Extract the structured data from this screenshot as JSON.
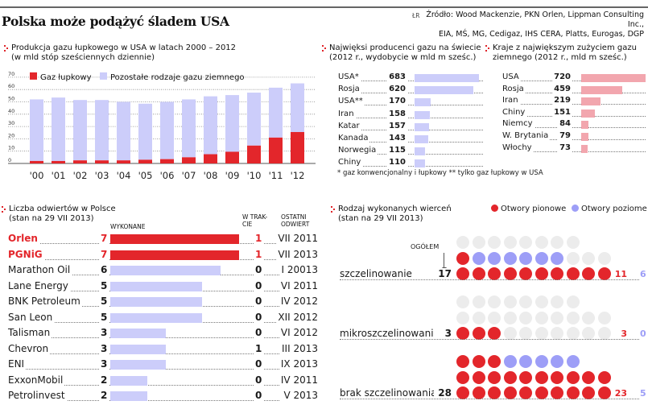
{
  "header": {
    "title": "Polska może podążyć śladem USA",
    "author": "ŁR",
    "source_line1": "Źródło: Wood Mackenzie, PKN Orlen, Lippman Consulting Inc.,",
    "source_line2": "EIA, MŚ, MG, Cedigaz, IHS CERA, Platts, Eurogas, DGP"
  },
  "colors": {
    "red": "#e3262b",
    "lavender": "#cccdfa",
    "pink": "#f2a6ae",
    "purple_dot": "#9d9ef7",
    "grey_dot": "#ececec"
  },
  "chart_data": [
    {
      "id": "us-shale-production",
      "type": "bar",
      "stacked": true,
      "title_line1": "Produkcja gazu łupkowego w USA w latach 2000  – 2012",
      "title_line2": "(w mld stóp sześciennych dziennie)",
      "categories": [
        "'00",
        "'01",
        "'02",
        "'03",
        "'04",
        "'05",
        "'06",
        "'07",
        "'08",
        "'09",
        "'10",
        "'11",
        "'12"
      ],
      "series": [
        {
          "name": "Gaz łupkowy",
          "color": "#e3262b",
          "values": [
            2,
            2,
            2.5,
            2.5,
            2.5,
            3,
            3.5,
            5,
            7.5,
            9.5,
            14.5,
            21,
            25.5
          ]
        },
        {
          "name": "Pozostałe rodzaje gazu ziemnego",
          "color": "#cccdfa",
          "values": [
            50,
            51.5,
            49,
            49,
            47.5,
            45.5,
            46.5,
            47,
            47,
            46,
            43,
            40.5,
            39.5
          ]
        }
      ],
      "yticks": [
        "0",
        "10",
        "20",
        "30",
        "40",
        "50",
        "60",
        "70"
      ],
      "ylim": [
        0,
        70
      ],
      "grid": true,
      "legend": "top-left"
    },
    {
      "id": "largest-producers",
      "type": "bar",
      "orientation": "horizontal",
      "title_line1": "Najwięksi producenci gazu na świecie",
      "title_line2": "(2012 r., wydobycie w mld m sześc.)",
      "categories": [
        "USA*",
        "Rosja",
        "USA**",
        "Iran",
        "Katar",
        "Kanada",
        "Norwegia",
        "Chiny"
      ],
      "values": [
        683,
        620,
        170,
        158,
        157,
        143,
        115,
        110
      ],
      "labels": [
        "683",
        "620",
        "170",
        "158",
        "157",
        "143",
        "115",
        "110"
      ],
      "color": "#cccdfa",
      "footnote": "* gaz konwencjonalny i łupkowy  ** tylko gaz łupkowy w USA"
    },
    {
      "id": "largest-consumers",
      "type": "bar",
      "orientation": "horizontal",
      "title_line1": "Kraje z największym zużyciem gazu",
      "title_line2": "ziemnego (2012 r., mld m sześc.)",
      "categories": [
        "USA",
        "Rosja",
        "Iran",
        "Chiny",
        "Niemcy",
        "W. Brytania",
        "Włochy"
      ],
      "values": [
        720,
        459,
        219,
        151,
        84,
        79,
        73
      ],
      "labels": [
        "720",
        "459",
        "219",
        "151",
        "84",
        "79",
        "73"
      ],
      "color": "#f2a6ae"
    },
    {
      "id": "wells-in-poland",
      "type": "table",
      "title_line1": "Liczba odwiertów w Polsce",
      "title_line2": "(stan na 29 VII 2013)",
      "columns": {
        "done": "WYKONANE",
        "in_progress_1": "W TRAK-",
        "in_progress_2": "CIE",
        "last_1": "OSTATNI",
        "last_2": "ODWIERT"
      },
      "rows": [
        {
          "company": "Orlen",
          "done": 7,
          "done_label": "7",
          "in_progress": "1",
          "last": "VII 2011",
          "highlight": true
        },
        {
          "company": "PGNiG",
          "done": 7,
          "done_label": "7",
          "in_progress": "1",
          "last": "VII 2013",
          "highlight": true
        },
        {
          "company": "Marathon Oil",
          "done": 6,
          "done_label": "6",
          "in_progress": "0",
          "last": "I 20013",
          "highlight": false
        },
        {
          "company": "Lane Energy",
          "done": 5,
          "done_label": "5",
          "in_progress": "0",
          "last": "VI 2011",
          "highlight": false
        },
        {
          "company": "BNK Petroleum",
          "done": 5,
          "done_label": "5",
          "in_progress": "0",
          "last": "IV 2012",
          "highlight": false
        },
        {
          "company": "San Leon",
          "done": 5,
          "done_label": "5",
          "in_progress": "0",
          "last": "XII 2012",
          "highlight": false
        },
        {
          "company": "Talisman",
          "done": 3,
          "done_label": "3",
          "in_progress": "0",
          "last": "VI 2012",
          "highlight": false
        },
        {
          "company": "Chevron",
          "done": 3,
          "done_label": "3",
          "in_progress": "1",
          "last": "III 2013",
          "highlight": false
        },
        {
          "company": "ENI",
          "done": 3,
          "done_label": "3",
          "in_progress": "0",
          "last": "IX 2013",
          "highlight": false
        },
        {
          "company": "ExxonMobil",
          "done": 2,
          "done_label": "2",
          "in_progress": "0",
          "last": "IV 2011",
          "highlight": false
        },
        {
          "company": "Petrolinvest",
          "done": 2,
          "done_label": "2",
          "in_progress": "0",
          "last": "V 2013",
          "highlight": false
        }
      ]
    },
    {
      "id": "drilling-types",
      "type": "scatter",
      "subtype": "dot-matrix",
      "title_line1": "Rodzaj wykonanych wierceń",
      "title_line2": "(stan na 29 VII 2013)",
      "legend": [
        {
          "name": "Otwory pionowe",
          "color": "#e3262b"
        },
        {
          "name": "Otwory poziome",
          "color": "#9d9ef7"
        }
      ],
      "legend_position": "top-right",
      "total_label": "OGÓŁEM",
      "grid_capacity": 28,
      "groups": [
        {
          "name": "szczelinowanie",
          "total": 17,
          "total_label": "17",
          "vertical": 11,
          "vertical_label": "11",
          "horizontal": 6,
          "horizontal_label": "6"
        },
        {
          "name": "mikroszczelinowanie",
          "total": 3,
          "total_label": "3",
          "vertical": 3,
          "vertical_label": "3",
          "horizontal": 0,
          "horizontal_label": "0"
        },
        {
          "name": "brak szczelinowania",
          "total": 28,
          "total_label": "28",
          "vertical": 23,
          "vertical_label": "23",
          "horizontal": 5,
          "horizontal_label": "5"
        }
      ]
    }
  ]
}
